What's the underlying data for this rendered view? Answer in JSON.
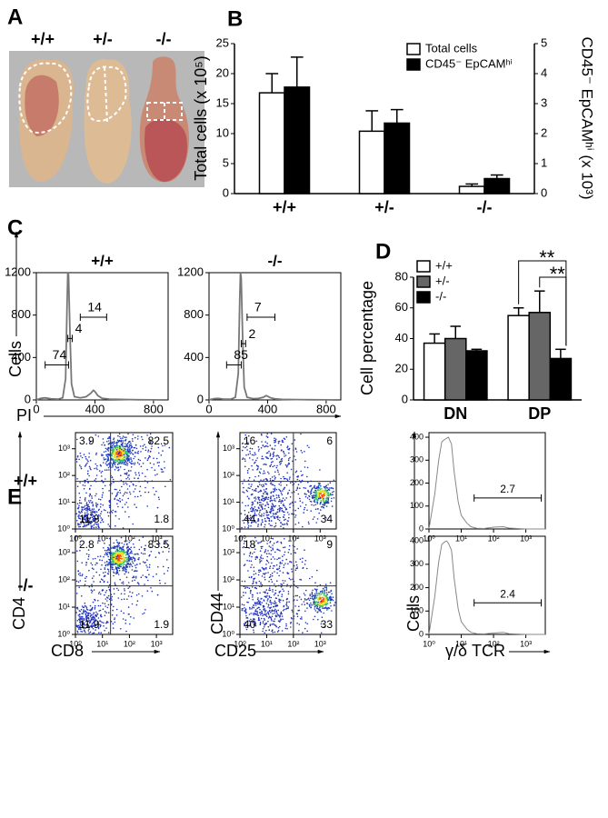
{
  "panel_a": {
    "label": "A",
    "genotypes": [
      "+/+",
      "+/-",
      "-/-"
    ]
  },
  "panel_e": {
    "label": "E",
    "row_labels": [
      "+/+",
      "-/-"
    ]
  },
  "chart_data": [
    {
      "type": "bar",
      "panel": "B",
      "categories": [
        "+/+",
        "+/-",
        "-/-"
      ],
      "ylabel": "Total cells (x 10⁵)",
      "y2label": "CD45⁻ EpCAMʰⁱ (x 10³)",
      "ylim": [
        0,
        25
      ],
      "yticks": [
        0,
        5,
        10,
        15,
        20,
        25
      ],
      "y2lim": [
        0,
        5
      ],
      "y2ticks": [
        0,
        1,
        2,
        3,
        4,
        5
      ],
      "legend": "top-right",
      "series": [
        {
          "name": "Total cells",
          "color": "#ffffff",
          "values": [
            16.8,
            10.4,
            1.2
          ],
          "errors": [
            3.2,
            3.4,
            0.4
          ]
        },
        {
          "name": "CD45⁻ EpCAMʰⁱ",
          "color": "#000000",
          "axis": "y2",
          "values": [
            3.55,
            2.35,
            0.5
          ],
          "errors": [
            1.0,
            0.45,
            0.12
          ]
        }
      ]
    },
    {
      "type": "line",
      "panel": "C",
      "title": "+/+",
      "xlabel": "PI",
      "ylabel": "Cells",
      "xlim": [
        0,
        900
      ],
      "xticks": [
        0,
        400,
        800
      ],
      "ylim": [
        0,
        1200
      ],
      "yticks": [
        0,
        400,
        800,
        1200
      ],
      "series": [
        {
          "color": "#777777",
          "x": [
            0,
            30,
            60,
            100,
            150,
            180,
            200,
            210,
            215,
            220,
            230,
            240,
            260,
            300,
            340,
            370,
            390,
            400,
            420,
            450,
            500,
            600,
            700,
            800,
            850
          ],
          "values": [
            0,
            15,
            20,
            10,
            8,
            20,
            200,
            900,
            1200,
            1180,
            600,
            150,
            30,
            20,
            30,
            60,
            90,
            80,
            40,
            15,
            8,
            4,
            2,
            1,
            0
          ]
        }
      ],
      "gates": [
        {
          "label": "74",
          "range": [
            60,
            220
          ],
          "y": 330
        },
        {
          "label": "4",
          "range": [
            215,
            245
          ],
          "y": 580
        },
        {
          "label": "14",
          "range": [
            300,
            480
          ],
          "y": 780
        }
      ]
    },
    {
      "type": "line",
      "title": "-/-",
      "xlim": [
        0,
        900
      ],
      "xticks": [
        0,
        400,
        800
      ],
      "ylim": [
        0,
        1200
      ],
      "yticks": [
        0,
        400,
        800,
        1200
      ],
      "series": [
        {
          "color": "#777777",
          "x": [
            0,
            30,
            60,
            100,
            150,
            180,
            200,
            210,
            215,
            220,
            230,
            240,
            260,
            300,
            340,
            370,
            390,
            400,
            420,
            450,
            500,
            600,
            700,
            800,
            850
          ],
          "values": [
            0,
            10,
            15,
            8,
            8,
            25,
            250,
            950,
            1200,
            1150,
            550,
            120,
            25,
            12,
            15,
            25,
            40,
            35,
            20,
            10,
            5,
            3,
            2,
            1,
            0
          ]
        }
      ],
      "gates": [
        {
          "label": "85",
          "range": [
            120,
            220
          ],
          "y": 330
        },
        {
          "label": "2",
          "range": [
            220,
            250
          ],
          "y": 530
        },
        {
          "label": "7",
          "range": [
            260,
            450
          ],
          "y": 780
        }
      ]
    },
    {
      "type": "bar",
      "panel": "D",
      "categories": [
        "DN",
        "DP"
      ],
      "ylabel": "Cell percentage",
      "ylim": [
        0,
        80
      ],
      "yticks": [
        0,
        20,
        40,
        60,
        80
      ],
      "legend": "top-left",
      "series": [
        {
          "name": "+/+",
          "color": "#ffffff",
          "values": [
            37,
            55
          ],
          "errors": [
            6,
            5
          ]
        },
        {
          "name": "+/-",
          "color": "#666666",
          "values": [
            40,
            57
          ],
          "errors": [
            8,
            14
          ]
        },
        {
          "name": "-/-",
          "color": "#000000",
          "values": [
            32,
            27
          ],
          "errors": [
            1,
            6
          ]
        }
      ],
      "annotations": [
        "**",
        "**"
      ]
    },
    {
      "type": "quadrant",
      "xscale": "log",
      "yscale": "log",
      "xlim": [
        1,
        4000
      ],
      "ylim": [
        1,
        4000
      ],
      "xticks": [
        {
          "value": 1,
          "label": "10⁰"
        },
        {
          "value": 10,
          "label": "10¹"
        },
        {
          "value": 100,
          "label": "10²"
        },
        {
          "value": 1000,
          "label": "10³"
        }
      ],
      "yticks": [
        {
          "value": 1,
          "label": "10⁰"
        },
        {
          "value": 10,
          "label": "10¹"
        },
        {
          "value": 100,
          "label": "10²"
        },
        {
          "value": 1000,
          "label": "10³"
        }
      ],
      "xgate": 20,
      "ygate": 60,
      "quadrants": [
        3.9,
        82.5,
        11.8,
        1.8
      ]
    },
    {
      "type": "quadrant",
      "xlabel": "CD8",
      "ylabel": "CD4",
      "xscale": "log",
      "yscale": "log",
      "xlim": [
        1,
        4000
      ],
      "ylim": [
        1,
        4000
      ],
      "xticks": [
        {
          "value": 1,
          "label": "10⁰"
        },
        {
          "value": 10,
          "label": "10¹"
        },
        {
          "value": 100,
          "label": "10²"
        },
        {
          "value": 1000,
          "label": "10³"
        }
      ],
      "yticks": [
        {
          "value": 1,
          "label": "10⁰"
        },
        {
          "value": 10,
          "label": "10¹"
        },
        {
          "value": 100,
          "label": "10²"
        },
        {
          "value": 1000,
          "label": "10³"
        }
      ],
      "xgate": 20,
      "ygate": 60,
      "quadrants": [
        2.8,
        83.5,
        11.9,
        1.9
      ]
    },
    {
      "type": "quadrant",
      "xscale": "log",
      "yscale": "log",
      "xlim": [
        1,
        4000
      ],
      "ylim": [
        1,
        4000
      ],
      "xticks": [
        {
          "value": 1,
          "label": "10⁰"
        },
        {
          "value": 10,
          "label": "10¹"
        },
        {
          "value": 100,
          "label": "10²"
        },
        {
          "value": 1000,
          "label": "10³"
        }
      ],
      "yticks": [
        {
          "value": 1,
          "label": "10⁰"
        },
        {
          "value": 10,
          "label": "10¹"
        },
        {
          "value": 100,
          "label": "10²"
        },
        {
          "value": 1000,
          "label": "10³"
        }
      ],
      "xgate": 100,
      "ygate": 60,
      "quadrants": [
        16,
        6,
        44,
        34
      ]
    },
    {
      "type": "quadrant",
      "xlabel": "CD25",
      "ylabel": "CD44",
      "xscale": "log",
      "yscale": "log",
      "xlim": [
        1,
        4000
      ],
      "ylim": [
        1,
        4000
      ],
      "xticks": [
        {
          "value": 1,
          "label": "10⁰"
        },
        {
          "value": 10,
          "label": "10¹"
        },
        {
          "value": 100,
          "label": "10²"
        },
        {
          "value": 1000,
          "label": "10³"
        }
      ],
      "yticks": [
        {
          "value": 1,
          "label": "10⁰"
        },
        {
          "value": 10,
          "label": "10¹"
        },
        {
          "value": 100,
          "label": "10²"
        },
        {
          "value": 1000,
          "label": "10³"
        }
      ],
      "xgate": 100,
      "ygate": 60,
      "quadrants": [
        18,
        9,
        40,
        33
      ]
    },
    {
      "type": "line",
      "xscale": "log",
      "xlim": [
        1,
        4000
      ],
      "ylim": [
        0,
        420
      ],
      "xticks": [
        {
          "value": 1,
          "label": "10⁰"
        },
        {
          "value": 10,
          "label": "10¹"
        },
        {
          "value": 100,
          "label": "10²"
        },
        {
          "value": 1000,
          "label": "10³"
        }
      ],
      "yticks": [
        0,
        100,
        200,
        300,
        400
      ],
      "series": [
        {
          "color": "#888888",
          "x": [
            1,
            1.5,
            2,
            2.5,
            3,
            3.5,
            4,
            5,
            6,
            8,
            10,
            15,
            20,
            30,
            50,
            100,
            200,
            300,
            1000,
            4000
          ],
          "values": [
            0,
            150,
            300,
            380,
            390,
            395,
            400,
            370,
            250,
            120,
            60,
            25,
            10,
            3,
            2,
            8,
            10,
            4,
            0,
            0
          ]
        }
      ],
      "gates": [
        {
          "label": "2.7",
          "range": [
            25,
            3000
          ],
          "y": 135
        }
      ]
    },
    {
      "type": "line",
      "xlabel": "γ/δ TCR",
      "ylabel": "Cells",
      "xscale": "log",
      "xlim": [
        1,
        4000
      ],
      "ylim": [
        0,
        420
      ],
      "xticks": [
        {
          "value": 1,
          "label": "10⁰"
        },
        {
          "value": 10,
          "label": "10¹"
        },
        {
          "value": 100,
          "label": "10²"
        },
        {
          "value": 1000,
          "label": "10³"
        }
      ],
      "yticks": [
        0,
        100,
        200,
        300,
        400
      ],
      "series": [
        {
          "color": "#888888",
          "x": [
            1,
            1.5,
            2,
            2.5,
            3,
            3.5,
            4,
            5,
            6,
            8,
            10,
            15,
            20,
            30,
            50,
            100,
            200,
            300,
            1000,
            4000
          ],
          "values": [
            0,
            160,
            310,
            385,
            395,
            400,
            390,
            360,
            240,
            110,
            55,
            22,
            9,
            3,
            2,
            6,
            9,
            3,
            0,
            0
          ]
        }
      ],
      "gates": [
        {
          "label": "2.4",
          "range": [
            25,
            3000
          ],
          "y": 135
        }
      ]
    }
  ]
}
